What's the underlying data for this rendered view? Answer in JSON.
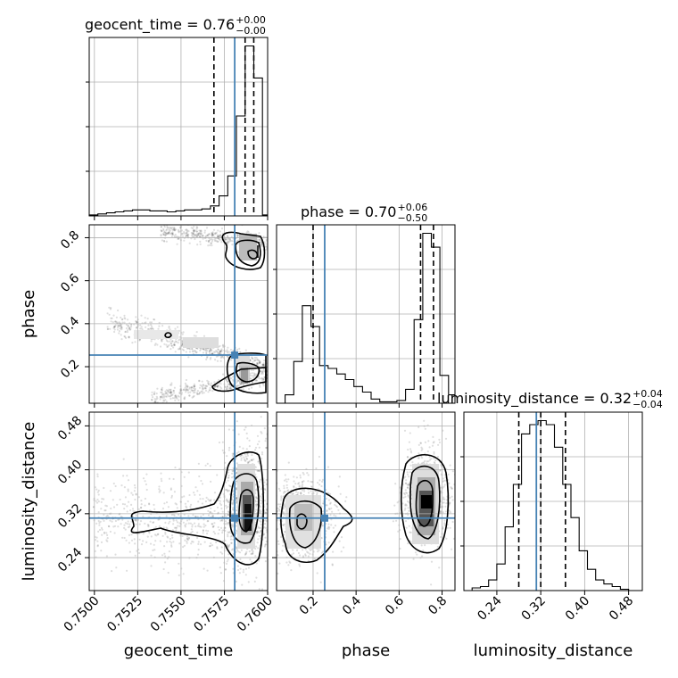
{
  "chart_data": {
    "type": "corner",
    "parameters": [
      "geocent_time",
      "phase",
      "luminosity_distance"
    ],
    "axis_labels": [
      "geocent_time",
      "phase",
      "luminosity_distance"
    ],
    "ranges": {
      "geocent_time": [
        0.7497,
        0.76
      ],
      "phase": [
        0.03,
        0.86
      ],
      "luminosity_distance": [
        0.18,
        0.505
      ]
    },
    "ticks": {
      "geocent_time": [
        "0.7500",
        "0.7525",
        "0.7550",
        "0.7575",
        "0.7600"
      ],
      "phase": [
        "0.2",
        "0.4",
        "0.6",
        "0.8"
      ],
      "luminosity_distance": [
        "0.24",
        "0.32",
        "0.40",
        "0.48"
      ]
    },
    "tick_values": {
      "geocent_time": [
        0.75,
        0.7525,
        0.755,
        0.7575,
        0.76
      ],
      "phase": [
        0.2,
        0.4,
        0.6,
        0.8
      ],
      "luminosity_distance": [
        0.24,
        0.32,
        0.4,
        0.48
      ]
    },
    "titles": [
      {
        "param": "geocent_time",
        "text": "geocent_time = 0.76",
        "plus": "+0.00",
        "minus": "−0.00"
      },
      {
        "param": "phase",
        "text": "phase = 0.70",
        "plus": "+0.06",
        "minus": "−0.50"
      },
      {
        "param": "luminosity_distance",
        "text": "luminosity_distance = 0.32",
        "plus": "+0.04",
        "minus": "−0.04"
      }
    ],
    "truths": {
      "geocent_time": 0.7581,
      "phase": 0.254,
      "luminosity_distance": 0.312
    },
    "quantiles": {
      "geocent_time": [
        0.7569,
        0.7587,
        0.7592
      ],
      "phase": [
        0.2,
        0.7,
        0.76
      ],
      "luminosity_distance": [
        0.28,
        0.32,
        0.365
      ]
    },
    "histograms": {
      "geocent_time": {
        "edges": [
          0.7497,
          0.7502,
          0.7507,
          0.7512,
          0.7517,
          0.7522,
          0.7527,
          0.7532,
          0.7537,
          0.7542,
          0.7547,
          0.7552,
          0.7557,
          0.7562,
          0.7567,
          0.7572,
          0.7577,
          0.7582,
          0.7587,
          0.7592,
          0.7597,
          0.76
        ],
        "counts": [
          1,
          2,
          3,
          4,
          5,
          6,
          6,
          5,
          5,
          4,
          5,
          6,
          6,
          7,
          10,
          20,
          40,
          100,
          170,
          138,
          1
        ]
      },
      "phase": {
        "edges": [
          0.03,
          0.07,
          0.11,
          0.15,
          0.19,
          0.23,
          0.27,
          0.31,
          0.35,
          0.39,
          0.43,
          0.47,
          0.51,
          0.55,
          0.59,
          0.63,
          0.67,
          0.71,
          0.75,
          0.79,
          0.83,
          0.86
        ],
        "counts": [
          0,
          6,
          30,
          70,
          55,
          27,
          25,
          21,
          17,
          12,
          8,
          3,
          1,
          1,
          2,
          10,
          60,
          122,
          112,
          20,
          6
        ]
      },
      "luminosity_distance": {
        "edges": [
          0.18,
          0.195,
          0.21,
          0.225,
          0.24,
          0.255,
          0.27,
          0.285,
          0.3,
          0.315,
          0.33,
          0.345,
          0.36,
          0.375,
          0.39,
          0.405,
          0.42,
          0.435,
          0.45,
          0.465,
          0.48,
          0.505
        ],
        "counts": [
          0,
          2,
          3,
          8,
          20,
          48,
          80,
          118,
          125,
          128,
          125,
          108,
          80,
          55,
          30,
          16,
          8,
          5,
          3,
          1,
          0
        ]
      }
    },
    "truth_color": "#4682b4",
    "ylim_pad": 1.05
  }
}
